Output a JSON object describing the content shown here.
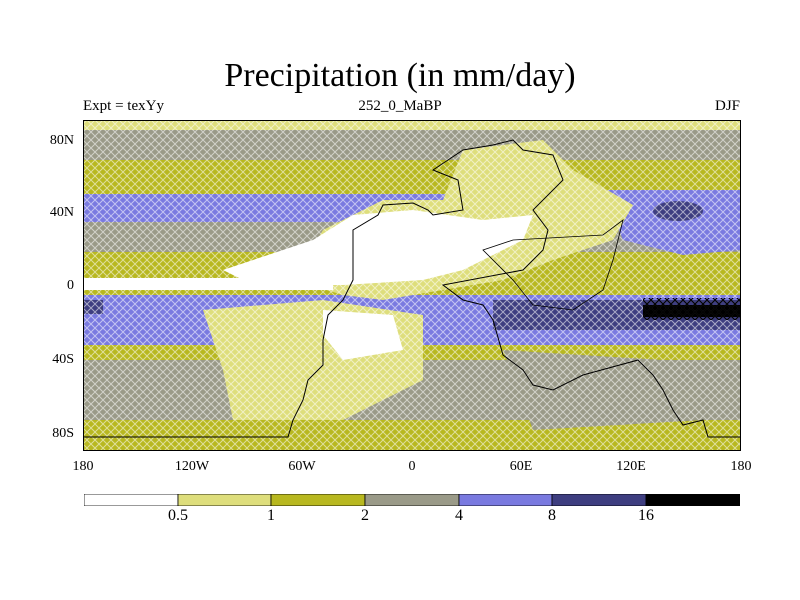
{
  "title": "Precipitation (in mm/day)",
  "left_label": "Expt = texYy",
  "center_label": "252_0_MaBP",
  "right_label": "DJF",
  "y_ticks": [
    "80N",
    "40N",
    "0",
    "40S",
    "80S"
  ],
  "x_ticks": [
    "180",
    "120W",
    "60W",
    "0",
    "60E",
    "120E",
    "180"
  ],
  "colorbar": {
    "levels": [
      "0.5",
      "1",
      "2",
      "4",
      "8",
      "16"
    ],
    "colors": [
      "#ffffff",
      "#dede7c",
      "#b8b820",
      "#9a9a88",
      "#7a7ae0",
      "#3e3e80",
      "#000000"
    ]
  },
  "colors": {
    "land_outline": "#000000",
    "hatch": "#ffffff"
  }
}
